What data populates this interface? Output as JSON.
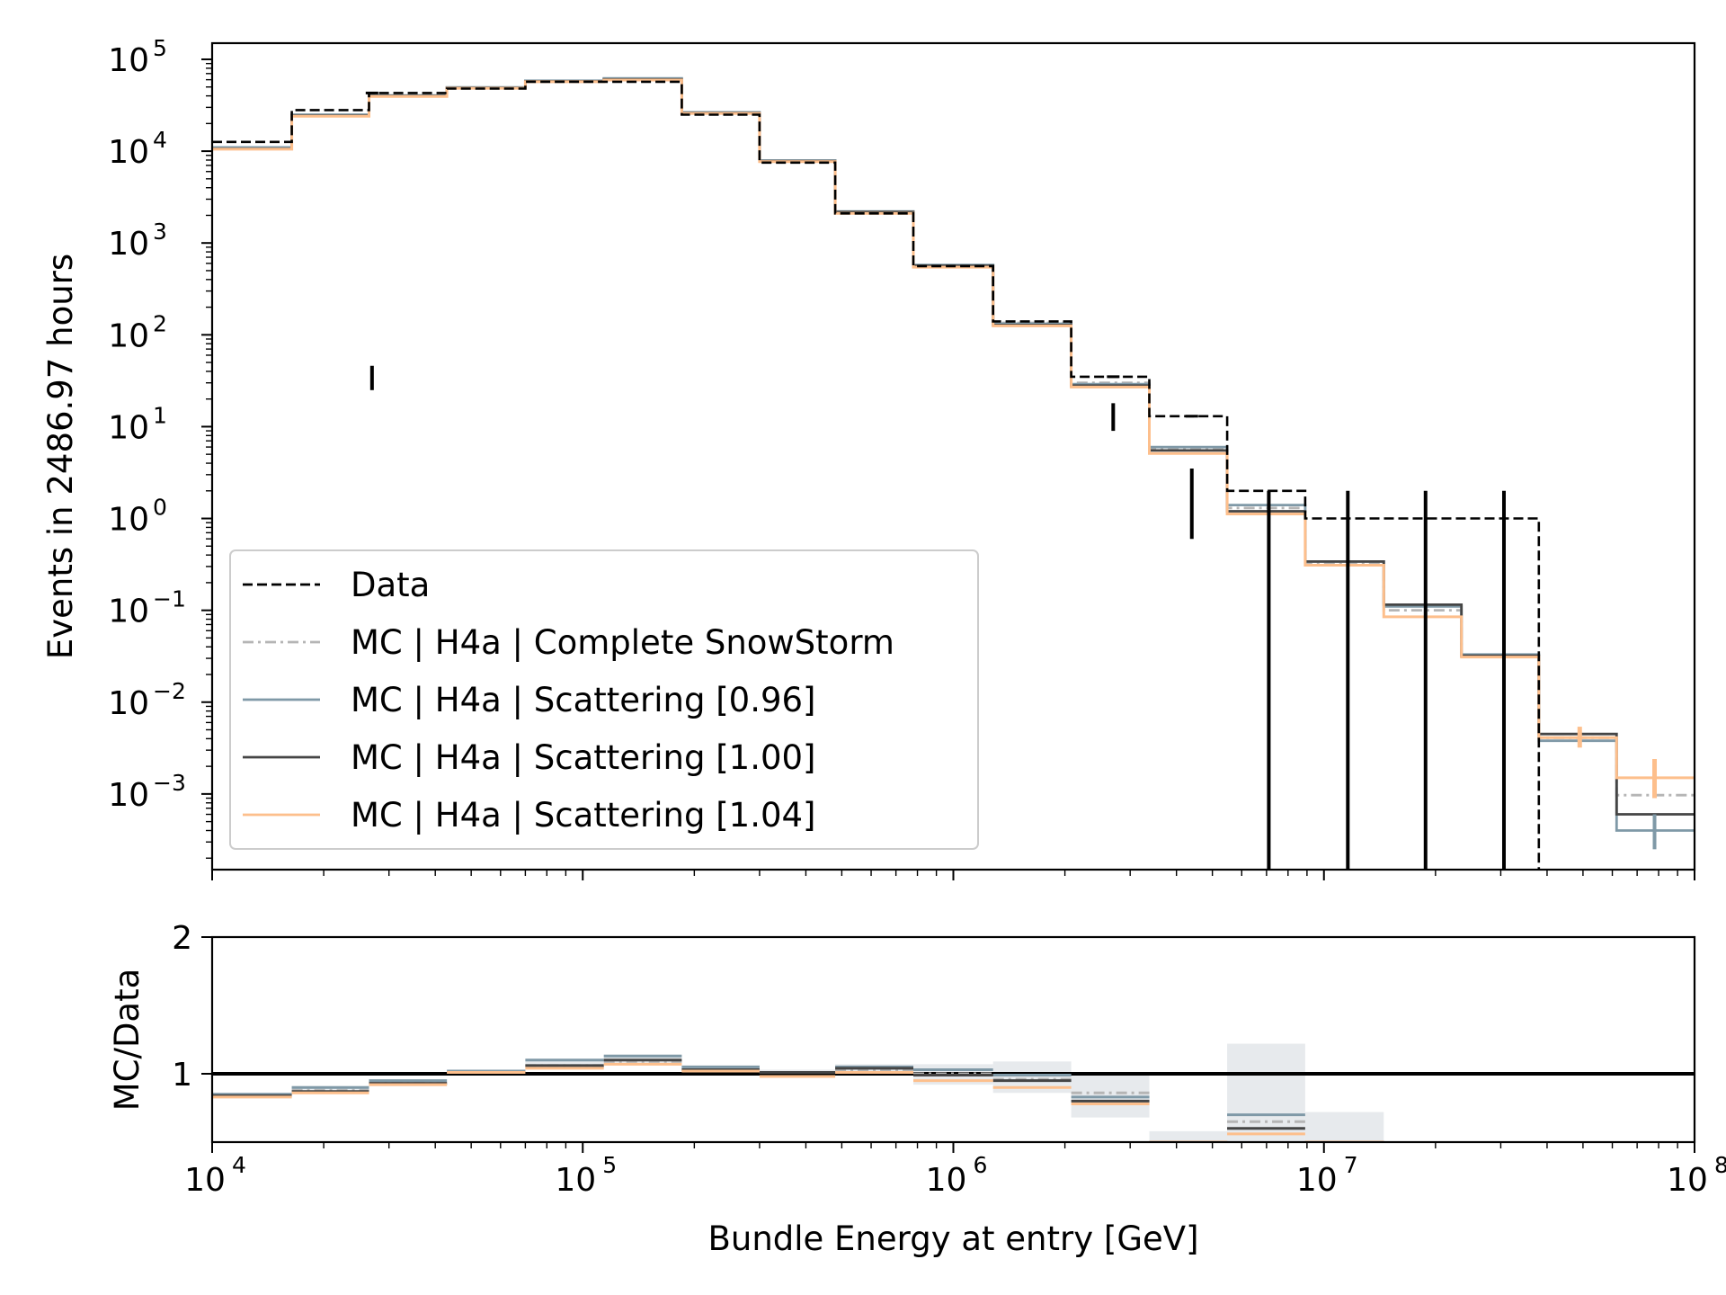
{
  "chart_data": {
    "type": "step-histogram",
    "xlabel": "Bundle Energy at entry [GeV]",
    "xscale": "log",
    "xlim": [
      10000,
      100000000
    ],
    "bin_edges": [
      10000,
      16400,
      26500,
      43000,
      70000,
      114000,
      185000,
      300000,
      480000,
      780000,
      1280000,
      2080000,
      3380000,
      5480000,
      8900000,
      14500000,
      23500000,
      38000000,
      61600000,
      100000000
    ],
    "top": {
      "ylabel": "Events in 2486.97 hours",
      "yscale": "log",
      "ylim": [
        0.00015,
        150000
      ],
      "ytick_base": "10",
      "ytick_exponents": [
        "5",
        "4",
        "3",
        "2",
        "1",
        "0",
        "−1",
        "−2",
        "−3"
      ],
      "ytick_values": [
        100000,
        10000,
        1000,
        100,
        10,
        1,
        0.1,
        0.01,
        0.001
      ],
      "data": {
        "name": "Data",
        "values": [
          12600,
          28000,
          43000,
          48000,
          57000,
          57000,
          25000,
          7500,
          2100,
          560,
          140,
          35,
          13,
          2,
          1,
          1,
          1
        ],
        "error_x": [
          27000,
          2700000,
          4400000,
          7100000,
          11600000,
          18800000,
          30600000
        ],
        "error_lo": [
          25,
          9,
          0.6,
          0.00015,
          0.00015,
          0.00015,
          0.00015
        ],
        "error_hi": [
          46,
          18,
          3.5,
          2,
          2,
          2,
          2
        ]
      },
      "series": [
        {
          "name": "MC | H4a | Complete SnowStorm",
          "color": "#b5b5b5",
          "dash": "dashdot",
          "values": [
            10800,
            24500,
            40000,
            49000,
            57000,
            60000,
            26000,
            7800,
            2150,
            570,
            135,
            30,
            5.7,
            1.3,
            0.33,
            0.1,
            0.032,
            0.0041,
            0.00097
          ]
        },
        {
          "name": "MC | H4a | Scattering [0.96]",
          "color": "#7f99a7",
          "dash": "solid",
          "values": [
            11000,
            25000,
            40500,
            49500,
            58500,
            62000,
            26500,
            7900,
            2200,
            575,
            132,
            29,
            6.0,
            1.4,
            0.34,
            0.11,
            0.033,
            0.0038,
            0.0004
          ]
        },
        {
          "name": "MC | H4a | Scattering [1.00]",
          "color": "#454545",
          "dash": "solid",
          "values": [
            10600,
            24300,
            39800,
            48800,
            57500,
            60500,
            26000,
            7800,
            2180,
            565,
            128,
            28,
            5.5,
            1.2,
            0.34,
            0.115,
            0.032,
            0.0045,
            0.0006
          ]
        },
        {
          "name": "MC | H4a | Scattering [1.04]",
          "color": "#fdbf8c",
          "dash": "solid",
          "values": [
            10500,
            24000,
            39500,
            48500,
            57000,
            59500,
            25800,
            7700,
            2100,
            545,
            125,
            27,
            5.1,
            1.12,
            0.31,
            0.085,
            0.031,
            0.0041,
            0.0015
          ]
        }
      ]
    },
    "bottom": {
      "ylabel": "MC/Data",
      "ylim": [
        0.5,
        2
      ],
      "yticks": [
        "1",
        "2"
      ],
      "ytick_values": [
        1,
        2
      ],
      "xtick_base": "10",
      "xtick_exponents": [
        "4",
        "5",
        "6",
        "7",
        "8"
      ],
      "xtick_values": [
        10000,
        100000,
        1000000,
        10000000,
        100000000
      ],
      "reference_line": 1,
      "series": [
        {
          "name": "MC | H4a | Complete SnowStorm",
          "color": "#b5b5b5",
          "dash": "dashdot",
          "values": [
            0.84,
            0.88,
            0.93,
            1.01,
            1.06,
            1.09,
            1.03,
            1.01,
            1.03,
            1.0,
            0.96,
            0.86,
            0.44,
            0.65,
            0.33
          ]
        },
        {
          "name": "MC | H4a | Scattering [0.96]",
          "color": "#7f99a7",
          "dash": "solid",
          "values": [
            0.85,
            0.9,
            0.95,
            1.02,
            1.1,
            1.13,
            1.05,
            1.01,
            1.05,
            1.03,
            0.99,
            0.83,
            0.46,
            0.7,
            0.34
          ]
        },
        {
          "name": "MC | H4a | Scattering [1.00]",
          "color": "#454545",
          "dash": "solid",
          "values": [
            0.84,
            0.87,
            0.93,
            1.01,
            1.06,
            1.1,
            1.03,
            1.01,
            1.04,
            0.99,
            0.95,
            0.8,
            0.42,
            0.6,
            0.34
          ]
        },
        {
          "name": "MC | H4a | Scattering [1.04]",
          "color": "#fdbf8c",
          "dash": "solid",
          "values": [
            0.83,
            0.86,
            0.92,
            1.01,
            1.04,
            1.07,
            1.02,
            0.98,
            1.01,
            0.95,
            0.9,
            0.78,
            0.4,
            0.56,
            0.31
          ]
        }
      ],
      "bands": {
        "color": "#d3d9de",
        "lo": [
          0.82,
          0.86,
          0.91,
          1.0,
          1.04,
          1.07,
          1.01,
          0.98,
          1.0,
          0.92,
          0.86,
          0.68,
          0.38,
          0.5,
          0.3
        ],
        "hi": [
          0.86,
          0.91,
          0.96,
          1.03,
          1.11,
          1.14,
          1.06,
          1.03,
          1.07,
          1.07,
          1.09,
          1.0,
          0.58,
          1.22,
          0.72
        ]
      }
    },
    "legend": {
      "position": "lower-left",
      "entries": [
        "Data",
        "MC | H4a | Complete SnowStorm",
        "MC | H4a | Scattering [0.96]",
        "MC | H4a | Scattering [1.00]",
        "MC | H4a | Scattering [1.04]"
      ],
      "styles": [
        "dashed-black",
        "dashdot-gray",
        "solid-slate",
        "solid-dark",
        "solid-peach"
      ]
    },
    "grid": false
  }
}
